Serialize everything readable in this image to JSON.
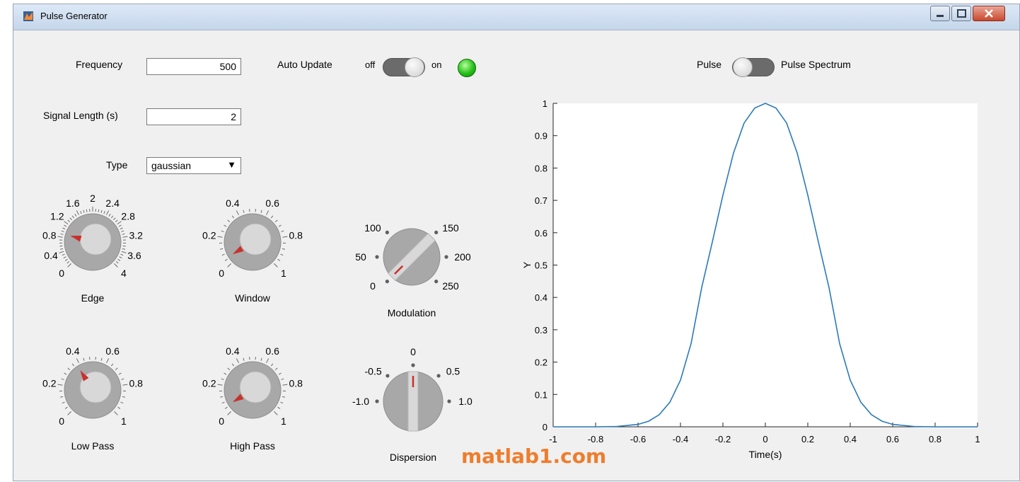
{
  "window": {
    "title": "Pulse Generator",
    "icon": "matlab-figure-icon"
  },
  "controls": {
    "frequency": {
      "label": "Frequency",
      "value": "500"
    },
    "signal_length": {
      "label": "Signal Length (s)",
      "value": "2"
    },
    "type": {
      "label": "Type",
      "value": "gaussian"
    },
    "auto_update": {
      "label": "Auto Update",
      "off_label": "off",
      "on_label": "on",
      "state": "on",
      "lamp_color": "#2fcf1f"
    },
    "plot_switch": {
      "left_label": "Pulse",
      "right_label": "Pulse Spectrum",
      "state": "Pulse"
    }
  },
  "knobs": [
    {
      "id": "edge",
      "label": "Edge",
      "ticks": [
        "0",
        "0.4",
        "0.8",
        "1.2",
        "1.6",
        "2",
        "2.4",
        "2.8",
        "3.2",
        "3.6",
        "4"
      ],
      "min": 0,
      "max": 4,
      "value": 0.9
    },
    {
      "id": "window",
      "label": "Window",
      "ticks": [
        "0",
        "0.2",
        "0.4",
        "0.6",
        "0.8",
        "1"
      ],
      "min": 0,
      "max": 1,
      "value": 0.05
    },
    {
      "id": "low-pass",
      "label": "Low Pass",
      "ticks": [
        "0",
        "0.2",
        "0.4",
        "0.6",
        "0.8",
        "1"
      ],
      "min": 0,
      "max": 1,
      "value": 0.38
    },
    {
      "id": "high-pass",
      "label": "High Pass",
      "ticks": [
        "0",
        "0.2",
        "0.4",
        "0.6",
        "0.8",
        "1"
      ],
      "min": 0,
      "max": 1,
      "value": 0.05
    }
  ],
  "switch_knobs": [
    {
      "id": "modulation",
      "label": "Modulation",
      "states": [
        "0",
        "50",
        "100",
        "150",
        "200",
        "250"
      ],
      "selected": "0"
    },
    {
      "id": "dispersion",
      "label": "Dispersion",
      "states": [
        "-1.0",
        "-0.5",
        "0",
        "0.5",
        "1.0"
      ],
      "selected": "0"
    }
  ],
  "chart_data": {
    "type": "line",
    "title": "",
    "xlabel": "Time(s)",
    "ylabel": "Y",
    "xlim": [
      -1,
      1
    ],
    "ylim": [
      0,
      1
    ],
    "xticks": [
      "-1",
      "-0.8",
      "-0.6",
      "-0.4",
      "-0.2",
      "0",
      "0.2",
      "0.4",
      "0.6",
      "0.8",
      "1"
    ],
    "yticks": [
      "0",
      "0.1",
      "0.2",
      "0.3",
      "0.4",
      "0.5",
      "0.6",
      "0.7",
      "0.8",
      "0.9",
      "1"
    ],
    "grid": false,
    "line_color": "#2a7ab8",
    "series": [
      {
        "x": [
          -1,
          -0.9,
          -0.8,
          -0.7,
          -0.6,
          -0.55,
          -0.5,
          -0.45,
          -0.4,
          -0.35,
          -0.3,
          -0.25,
          -0.2,
          -0.15,
          -0.1,
          -0.05,
          0,
          0.05,
          0.1,
          0.15,
          0.2,
          0.25,
          0.3,
          0.35,
          0.4,
          0.45,
          0.5,
          0.55,
          0.6,
          0.7,
          0.8,
          0.9,
          1
        ],
        "y": [
          0,
          0,
          0.0001,
          0.0011,
          0.0075,
          0.0173,
          0.0375,
          0.076,
          0.1443,
          0.2571,
          0.4305,
          0.571,
          0.7163,
          0.8466,
          0.9394,
          0.9856,
          1,
          0.9856,
          0.9394,
          0.8466,
          0.7163,
          0.571,
          0.4305,
          0.2571,
          0.1443,
          0.076,
          0.0375,
          0.0173,
          0.0075,
          0.0011,
          0.0001,
          0,
          0
        ]
      }
    ]
  },
  "watermark": "matlab1.com"
}
